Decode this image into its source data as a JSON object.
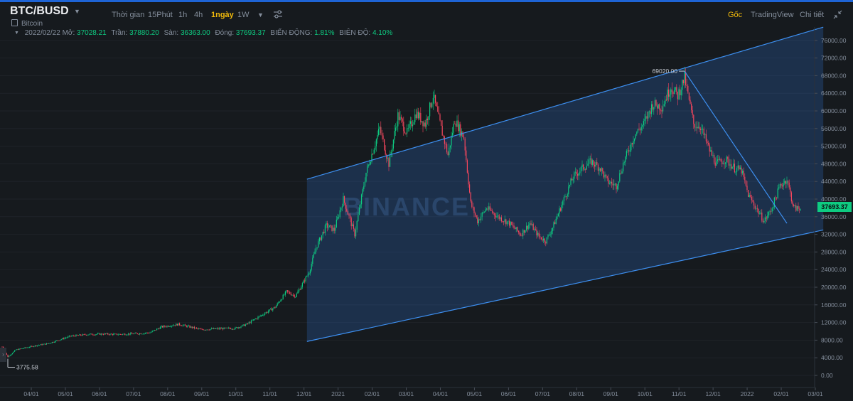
{
  "header": {
    "pair": "BTC/BUSD",
    "asset_name": "Bitcoin",
    "timeframes": [
      {
        "label": "Thời gian",
        "active": false
      },
      {
        "label": "15Phút",
        "active": false
      },
      {
        "label": "1h",
        "active": false
      },
      {
        "label": "4h",
        "active": false
      },
      {
        "label": "1ngày",
        "active": true
      },
      {
        "label": "1W",
        "active": false
      }
    ],
    "views": [
      {
        "label": "Gốc",
        "active": true
      },
      {
        "label": "TradingView",
        "active": false
      },
      {
        "label": "Chi tiết",
        "active": false
      }
    ]
  },
  "ohlc": {
    "date": "2022/02/22",
    "open_label": "Mở:",
    "open": "37028.21",
    "high_label": "Trần:",
    "high": "37880.20",
    "low_label": "Sàn:",
    "low": "36363.00",
    "close_label": "Đóng:",
    "close": "37693.37",
    "change_label": "BIẾN ĐỘNG:",
    "change": "1.81%",
    "amplitude_label": "BIÊN ĐỘ:",
    "amplitude": "4.10%"
  },
  "chart_data": {
    "type": "candlestick",
    "y_ticks": [
      "76000.00",
      "72000.00",
      "68000.00",
      "64000.00",
      "60000.00",
      "56000.00",
      "52000.00",
      "48000.00",
      "44000.00",
      "40000.00",
      "36000.00",
      "32000.00",
      "28000.00",
      "24000.00",
      "20000.00",
      "16000.00",
      "12000.00",
      "8000.00",
      "4000.00",
      "0.00"
    ],
    "x_ticks": [
      "04/01",
      "05/01",
      "06/01",
      "07/01",
      "08/01",
      "09/01",
      "10/01",
      "11/01",
      "12/01",
      "2021",
      "02/01",
      "03/01",
      "04/01",
      "05/01",
      "06/01",
      "07/01",
      "08/01",
      "09/01",
      "10/01",
      "11/01",
      "12/01",
      "2022",
      "02/01",
      "03/01"
    ],
    "ylim": [
      -2000,
      79000
    ],
    "last_price": "37693.37",
    "max_label": "69020.00",
    "min_label": "3775.58",
    "watermark": "BINANCE",
    "up_color": "#0ecb81",
    "down_color": "#f6465d",
    "anchors": [
      [
        0,
        6500
      ],
      [
        5,
        4200
      ],
      [
        12,
        5800
      ],
      [
        30,
        6800
      ],
      [
        40,
        7200
      ],
      [
        60,
        8900
      ],
      [
        75,
        9300
      ],
      [
        90,
        9400
      ],
      [
        100,
        9300
      ],
      [
        120,
        9500
      ],
      [
        130,
        9700
      ],
      [
        140,
        11000
      ],
      [
        155,
        11600
      ],
      [
        175,
        10400
      ],
      [
        190,
        10600
      ],
      [
        205,
        10700
      ],
      [
        215,
        11600
      ],
      [
        225,
        13200
      ],
      [
        240,
        15500
      ],
      [
        250,
        19000
      ],
      [
        258,
        18000
      ],
      [
        270,
        23500
      ],
      [
        276,
        29000
      ],
      [
        285,
        34000
      ],
      [
        292,
        33000
      ],
      [
        300,
        40000
      ],
      [
        310,
        32000
      ],
      [
        320,
        46000
      ],
      [
        332,
        56000
      ],
      [
        340,
        48000
      ],
      [
        348,
        59000
      ],
      [
        356,
        55000
      ],
      [
        364,
        59500
      ],
      [
        372,
        57000
      ],
      [
        379,
        63500
      ],
      [
        386,
        56000
      ],
      [
        392,
        50000
      ],
      [
        398,
        58000
      ],
      [
        406,
        54000
      ],
      [
        412,
        39000
      ],
      [
        418,
        35000
      ],
      [
        426,
        38000
      ],
      [
        436,
        36000
      ],
      [
        446,
        34500
      ],
      [
        456,
        32000
      ],
      [
        464,
        34500
      ],
      [
        472,
        31500
      ],
      [
        478,
        30500
      ],
      [
        484,
        33500
      ],
      [
        494,
        40000
      ],
      [
        502,
        45000
      ],
      [
        510,
        47000
      ],
      [
        518,
        48500
      ],
      [
        526,
        47000
      ],
      [
        532,
        44000
      ],
      [
        540,
        43000
      ],
      [
        546,
        48000
      ],
      [
        556,
        54500
      ],
      [
        564,
        57000
      ],
      [
        572,
        61500
      ],
      [
        580,
        61000
      ],
      [
        588,
        65500
      ],
      [
        594,
        63500
      ],
      [
        600,
        67500
      ],
      [
        608,
        57000
      ],
      [
        614,
        56500
      ],
      [
        622,
        51000
      ],
      [
        628,
        48000
      ],
      [
        636,
        49000
      ],
      [
        644,
        47000
      ],
      [
        650,
        46500
      ],
      [
        656,
        41000
      ],
      [
        664,
        37500
      ],
      [
        670,
        35000
      ],
      [
        676,
        37500
      ],
      [
        684,
        43000
      ],
      [
        690,
        44500
      ],
      [
        696,
        38000
      ],
      [
        702,
        37693
      ]
    ],
    "overlays": {
      "channel": [
        {
          "name": "upper",
          "points": [
            [
              268,
              44500
            ],
            [
              722,
              79000
            ]
          ]
        },
        {
          "name": "lower",
          "points": [
            [
              268,
              7700
            ],
            [
              722,
              33000
            ]
          ]
        }
      ],
      "trendline": [
        [
          600,
          69020
        ],
        [
          690,
          34500
        ]
      ]
    }
  }
}
